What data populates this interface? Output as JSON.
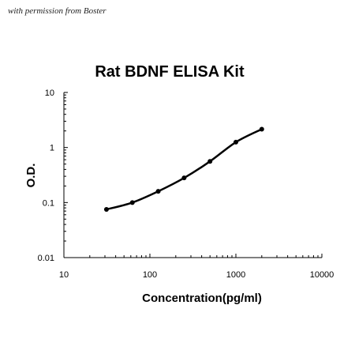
{
  "watermark": "with permission from Boster",
  "chart_data": {
    "type": "line",
    "title": "Rat BDNF ELISA Kit",
    "xlabel": "Concentration(pg/ml)",
    "ylabel": "O.D.",
    "xscale": "log",
    "yscale": "log",
    "xlim": [
      10,
      10000
    ],
    "ylim": [
      0.01,
      10
    ],
    "xticks": [
      "10",
      "100",
      "1000",
      "10000"
    ],
    "yticks": [
      "0.01",
      "0.1",
      "1",
      "10"
    ],
    "grid": false,
    "legend": "none",
    "line_color": "#000000",
    "series": [
      {
        "x": [
          31.25,
          62.5,
          125,
          250,
          500,
          1000,
          2000
        ],
        "y": [
          0.075,
          0.1,
          0.16,
          0.28,
          0.56,
          1.25,
          2.15
        ]
      }
    ]
  }
}
